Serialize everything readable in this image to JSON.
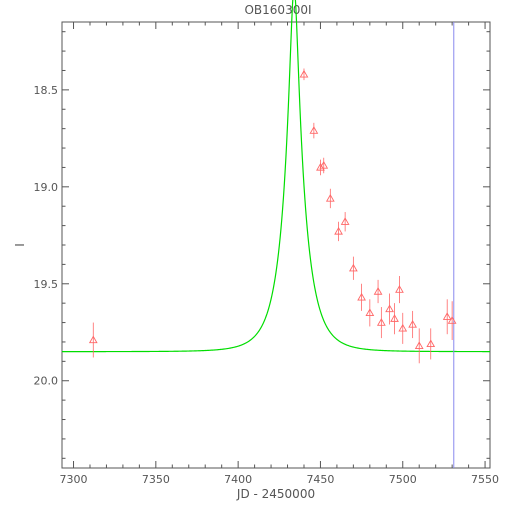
{
  "chart_data": {
    "type": "scatter",
    "title": "OB160300I",
    "xlabel": "JD - 2450000",
    "ylabel": "I",
    "xlim": [
      7293,
      7553
    ],
    "ylim": [
      20.45,
      18.15
    ],
    "y_inverted": true,
    "x_ticks": [
      "7300",
      "7350",
      "7400",
      "7450",
      "7500",
      "7550"
    ],
    "x_tick_values": [
      7300,
      7350,
      7400,
      7450,
      7500,
      7550
    ],
    "y_ticks": [
      "18.5",
      "19.0",
      "19.5",
      "20.0"
    ],
    "y_tick_values": [
      18.5,
      19.0,
      19.5,
      20.0
    ],
    "grid": false,
    "series": [
      {
        "kind": "points",
        "marker": "triangle-open",
        "color": "#ff6666",
        "points": [
          {
            "x": 7312,
            "y": 19.79,
            "err": 0.09
          },
          {
            "x": 7440,
            "y": 18.42,
            "err": 0.03
          },
          {
            "x": 7446,
            "y": 18.71,
            "err": 0.04
          },
          {
            "x": 7450,
            "y": 18.9,
            "err": 0.04
          },
          {
            "x": 7452,
            "y": 18.89,
            "err": 0.04
          },
          {
            "x": 7456,
            "y": 19.06,
            "err": 0.05
          },
          {
            "x": 7461,
            "y": 19.23,
            "err": 0.05
          },
          {
            "x": 7465,
            "y": 19.18,
            "err": 0.05
          },
          {
            "x": 7470,
            "y": 19.42,
            "err": 0.06
          },
          {
            "x": 7475,
            "y": 19.57,
            "err": 0.07
          },
          {
            "x": 7480,
            "y": 19.65,
            "err": 0.07
          },
          {
            "x": 7485,
            "y": 19.54,
            "err": 0.06
          },
          {
            "x": 7487,
            "y": 19.7,
            "err": 0.08
          },
          {
            "x": 7492,
            "y": 19.63,
            "err": 0.08
          },
          {
            "x": 7495,
            "y": 19.68,
            "err": 0.08
          },
          {
            "x": 7498,
            "y": 19.53,
            "err": 0.07
          },
          {
            "x": 7500,
            "y": 19.73,
            "err": 0.08
          },
          {
            "x": 7506,
            "y": 19.71,
            "err": 0.07
          },
          {
            "x": 7510,
            "y": 19.82,
            "err": 0.09
          },
          {
            "x": 7517,
            "y": 19.81,
            "err": 0.08
          },
          {
            "x": 7527,
            "y": 19.67,
            "err": 0.09
          },
          {
            "x": 7530,
            "y": 19.69,
            "err": 0.1
          }
        ]
      },
      {
        "kind": "model",
        "color": "#00dd00",
        "model": "paczynski",
        "t0": 7434,
        "tE": 13,
        "u0": 0.18,
        "baseline": 19.85,
        "x_range": [
          7293,
          7553
        ]
      }
    ],
    "vline": {
      "x": 7531,
      "color": "#8888ee"
    }
  }
}
